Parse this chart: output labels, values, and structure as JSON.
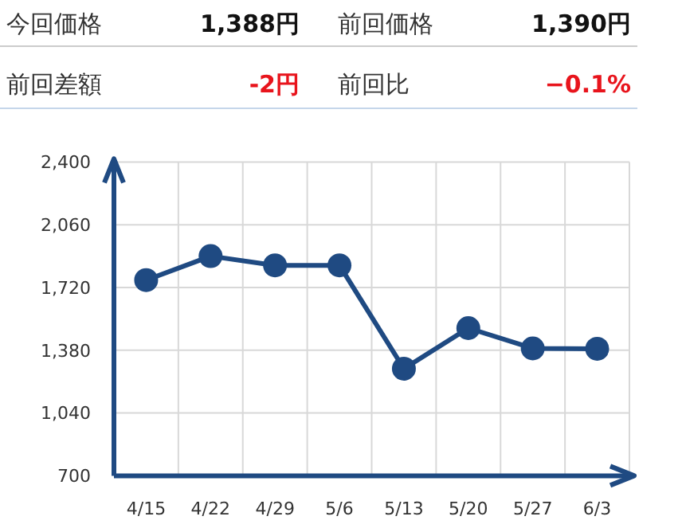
{
  "chart_data": {
    "type": "line",
    "annotations": [
      "今回価格",
      "1,388円",
      "前回価格",
      "1,390円",
      "前回差額",
      "-2円",
      "前回比",
      "−0.1%"
    ],
    "categories": [
      "4/15",
      "4/22",
      "4/29",
      "5/6",
      "5/13",
      "5/20",
      "5/27",
      "6/3"
    ],
    "series": [
      {
        "color": "#1f4a82",
        "values": [
          1760,
          1890,
          1840,
          1840,
          1280,
          1500,
          1390,
          1388
        ]
      }
    ],
    "ylim": [
      700,
      2400
    ],
    "yticks": [
      {
        "value": 700,
        "label": "700"
      },
      {
        "value": 1040,
        "label": "1,040"
      },
      {
        "value": 1380,
        "label": "1,380"
      },
      {
        "value": 1720,
        "label": "1,720"
      },
      {
        "value": 2060,
        "label": "2,060"
      },
      {
        "value": 2400,
        "label": "2,400"
      }
    ],
    "grid": true,
    "marker": "circle",
    "line_style": "solid"
  }
}
